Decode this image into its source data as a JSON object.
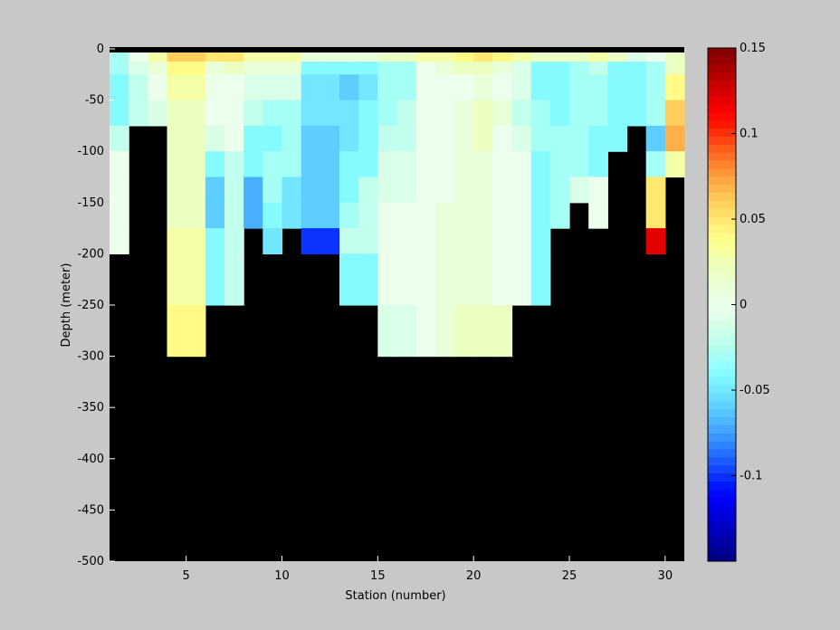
{
  "chart_data": {
    "type": "heatmap",
    "xlabel": "Station (number)",
    "ylabel": "Depth (meter)",
    "xlim": [
      1,
      31
    ],
    "ylim": [
      -500,
      0
    ],
    "xticks": [
      5,
      10,
      15,
      20,
      25,
      30
    ],
    "yticks": [
      0,
      -50,
      -100,
      -150,
      -200,
      -250,
      -300,
      -350,
      -400,
      -450,
      -500
    ],
    "colorbar": {
      "clim": [
        -0.15,
        0.15
      ],
      "ticks": [
        0.15,
        0.1,
        0.05,
        0,
        -0.05,
        -0.1
      ],
      "tick_labels": [
        "0.15",
        "0.1",
        "0.05",
        "0",
        "-0.05",
        "-0.1"
      ]
    },
    "background_color": "#000000",
    "depth_bins": [
      0,
      -12.5,
      -25,
      -50,
      -75,
      -100,
      -125,
      -150,
      -175,
      -200,
      -250,
      -300,
      -400
    ],
    "stations": [
      1,
      2,
      3,
      4,
      5,
      6,
      7,
      8,
      9,
      10,
      11,
      12,
      13,
      14,
      15,
      16,
      17,
      18,
      19,
      20,
      21,
      22,
      23,
      24,
      25,
      26,
      27,
      28,
      29,
      30
    ],
    "values": [
      [
        -0.03,
        -0.03,
        -0.04,
        -0.04,
        -0.02,
        0.0,
        0.0,
        0.0,
        0.0,
        null,
        null,
        null
      ],
      [
        0.0,
        -0.01,
        -0.02,
        -0.02,
        null,
        null,
        null,
        null,
        null,
        null,
        null,
        null
      ],
      [
        0.03,
        0.01,
        0.0,
        -0.01,
        null,
        null,
        null,
        null,
        null,
        null,
        null,
        null
      ],
      [
        0.06,
        0.04,
        0.03,
        0.02,
        0.02,
        0.02,
        0.02,
        0.02,
        0.03,
        0.03,
        0.04,
        null
      ],
      [
        0.06,
        0.04,
        0.03,
        0.02,
        0.02,
        0.02,
        0.02,
        0.02,
        0.03,
        0.03,
        0.04,
        null
      ],
      [
        0.05,
        0.01,
        0.0,
        0.0,
        -0.01,
        -0.04,
        -0.06,
        -0.06,
        -0.04,
        -0.04,
        null,
        null
      ],
      [
        0.05,
        0.02,
        0.0,
        0.0,
        0.0,
        -0.02,
        -0.02,
        -0.02,
        -0.02,
        -0.02,
        null,
        null
      ],
      [
        0.03,
        0.01,
        -0.01,
        -0.02,
        -0.04,
        -0.04,
        -0.07,
        -0.07,
        null,
        null,
        null,
        null
      ],
      [
        0.03,
        0.01,
        -0.01,
        -0.03,
        -0.04,
        -0.03,
        -0.03,
        -0.04,
        -0.05,
        null,
        null,
        null
      ],
      [
        0.03,
        0.01,
        -0.01,
        -0.03,
        -0.03,
        -0.03,
        -0.05,
        -0.05,
        null,
        null,
        null,
        null
      ],
      [
        0.01,
        -0.04,
        -0.05,
        -0.05,
        -0.06,
        -0.06,
        -0.06,
        -0.06,
        -0.1,
        null,
        null,
        null
      ],
      [
        0.01,
        -0.04,
        -0.05,
        -0.05,
        -0.06,
        -0.06,
        -0.06,
        -0.06,
        -0.1,
        null,
        null,
        null
      ],
      [
        0.01,
        -0.04,
        -0.06,
        -0.05,
        -0.05,
        -0.04,
        -0.04,
        -0.03,
        -0.02,
        -0.04,
        null,
        null
      ],
      [
        0.01,
        -0.04,
        -0.05,
        -0.04,
        -0.04,
        -0.04,
        -0.02,
        -0.02,
        -0.02,
        -0.04,
        null,
        null
      ],
      [
        0.02,
        -0.03,
        -0.03,
        -0.03,
        -0.02,
        -0.01,
        -0.01,
        0.0,
        0.0,
        0.0,
        -0.01,
        null
      ],
      [
        0.02,
        -0.03,
        -0.03,
        -0.02,
        -0.02,
        -0.01,
        -0.01,
        0.0,
        0.0,
        0.0,
        -0.01,
        null
      ],
      [
        0.03,
        0.0,
        0.0,
        0.0,
        0.0,
        0.0,
        0.0,
        0.0,
        0.0,
        0.0,
        0.0,
        null
      ],
      [
        0.03,
        0.01,
        0.0,
        0.0,
        0.0,
        0.0,
        0.0,
        0.01,
        0.01,
        0.01,
        0.01,
        null
      ],
      [
        0.04,
        0.02,
        0.0,
        0.01,
        0.01,
        0.01,
        0.01,
        0.01,
        0.01,
        0.01,
        0.02,
        null
      ],
      [
        0.05,
        0.02,
        0.01,
        0.02,
        0.02,
        0.01,
        0.01,
        0.01,
        0.01,
        0.01,
        0.02,
        null
      ],
      [
        0.04,
        0.01,
        0.0,
        0.01,
        0.0,
        0.0,
        0.0,
        0.0,
        0.0,
        0.0,
        0.02,
        null
      ],
      [
        0.03,
        -0.01,
        -0.01,
        -0.02,
        -0.01,
        0.0,
        0.0,
        0.0,
        0.0,
        0.0,
        null,
        null
      ],
      [
        0.02,
        -0.04,
        -0.04,
        -0.03,
        -0.03,
        -0.04,
        -0.04,
        -0.04,
        -0.04,
        -0.04,
        null,
        null
      ],
      [
        0.02,
        -0.04,
        -0.04,
        -0.04,
        -0.03,
        -0.03,
        -0.03,
        -0.03,
        null,
        null,
        null,
        null
      ],
      [
        0.02,
        -0.03,
        -0.03,
        -0.03,
        -0.03,
        -0.03,
        -0.01,
        null,
        null,
        null,
        null,
        null
      ],
      [
        0.03,
        -0.02,
        -0.03,
        -0.03,
        -0.04,
        -0.04,
        0.0,
        0.0,
        null,
        null,
        null,
        null
      ],
      [
        0.02,
        -0.04,
        -0.04,
        -0.04,
        -0.04,
        null,
        null,
        null,
        null,
        null,
        null,
        null
      ],
      [
        -0.01,
        -0.04,
        -0.04,
        -0.04,
        null,
        null,
        null,
        null,
        null,
        null,
        null,
        null
      ],
      [
        0.0,
        -0.03,
        -0.03,
        -0.03,
        -0.06,
        -0.03,
        0.05,
        0.05,
        0.12,
        null,
        null,
        null
      ],
      [
        0.02,
        0.02,
        0.04,
        0.06,
        0.07,
        0.03,
        null,
        null,
        null,
        null,
        null,
        null
      ]
    ]
  }
}
